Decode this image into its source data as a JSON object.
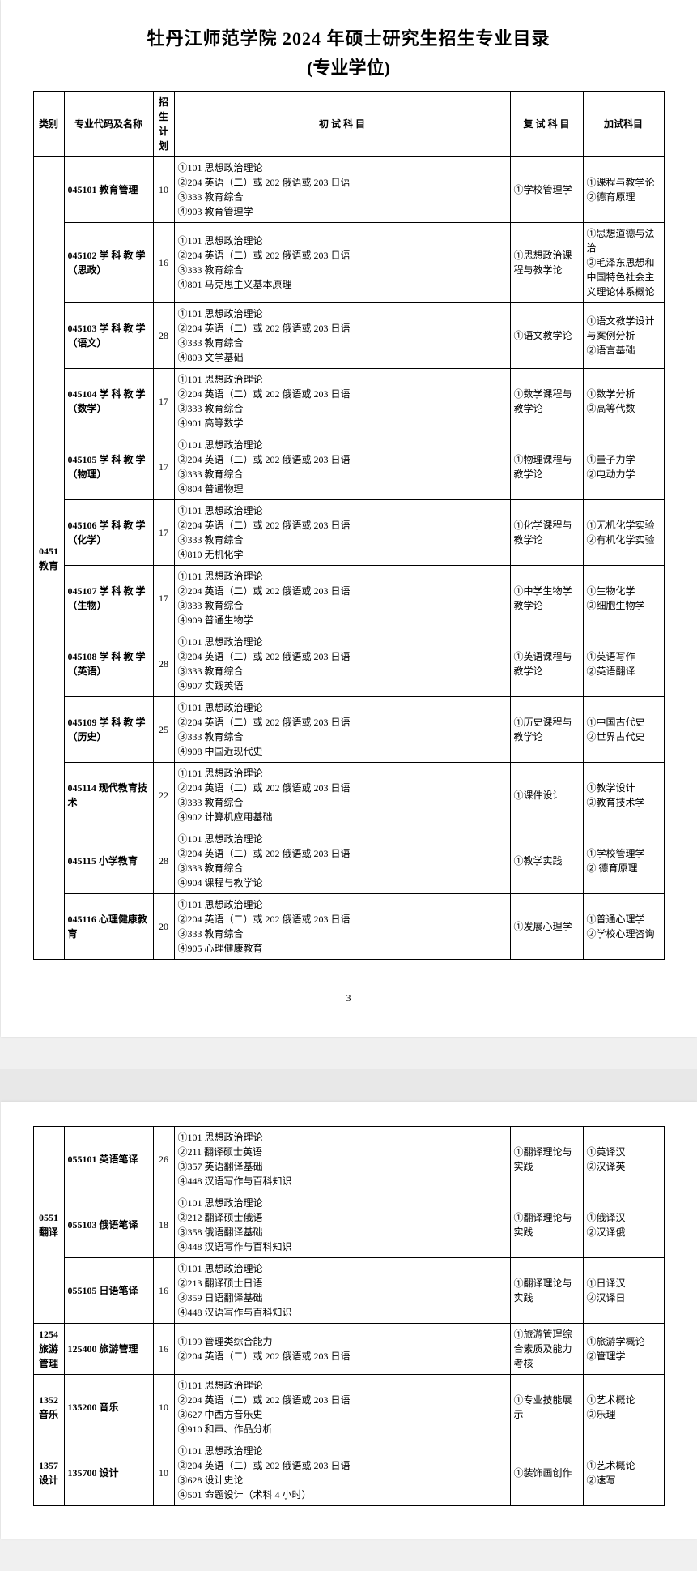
{
  "title_line1": "牡丹江师范学院 2024 年硕士研究生招生专业目录",
  "title_line2": "(专业学位)",
  "headers": {
    "category": "类别",
    "major": "专业代码及名称",
    "plan": "招生计划",
    "initial": "初 试 科 目",
    "reexam": "复 试 科 目",
    "additional": "加试科目"
  },
  "page_number": "3",
  "categories": [
    {
      "cat_code": "0451",
      "cat_name": "教育",
      "rows": [
        {
          "major": "045101 教育管理",
          "plan": "10",
          "init": [
            "①101 思想政治理论",
            "②204 英语（二）或 202 俄语或 203 日语",
            "③333 教育综合",
            "④903 教育管理学"
          ],
          "re": [
            "①学校管理学"
          ],
          "add": [
            "①课程与教学论",
            "②德育原理"
          ]
        },
        {
          "major": "045102 学 科 教 学（思政）",
          "plan": "16",
          "init": [
            "①101 思想政治理论",
            "②204 英语（二）或 202 俄语或 203 日语",
            "③333 教育综合",
            "④801 马克思主义基本原理"
          ],
          "re": [
            "①思想政治课程与教学论"
          ],
          "add": [
            "①思想道德与法治",
            "②毛泽东思想和中国特色社会主义理论体系概论"
          ]
        },
        {
          "major": "045103 学 科 教 学（语文）",
          "plan": "28",
          "init": [
            "①101 思想政治理论",
            "②204 英语（二）或 202 俄语或 203 日语",
            "③333 教育综合",
            "④803 文学基础"
          ],
          "re": [
            "①语文教学论"
          ],
          "add": [
            "①语文教学设计与案例分析",
            "②语言基础"
          ]
        },
        {
          "major": "045104 学 科 教 学（数学）",
          "plan": "17",
          "init": [
            "①101 思想政治理论",
            "②204 英语（二）或 202 俄语或 203 日语",
            "③333 教育综合",
            "④901 高等数学"
          ],
          "re": [
            "①数学课程与教学论"
          ],
          "add": [
            "①数学分析",
            "②高等代数"
          ]
        },
        {
          "major": "045105 学 科 教 学（物理）",
          "plan": "17",
          "init": [
            "①101 思想政治理论",
            "②204 英语（二）或 202 俄语或 203 日语",
            "③333 教育综合",
            "④804 普通物理"
          ],
          "re": [
            "①物理课程与教学论"
          ],
          "add": [
            "①量子力学",
            "②电动力学"
          ]
        },
        {
          "major": "045106 学 科 教 学（化学）",
          "plan": "17",
          "init": [
            "①101 思想政治理论",
            "②204 英语（二）或 202 俄语或 203 日语",
            "③333 教育综合",
            "④810 无机化学"
          ],
          "re": [
            "①化学课程与教学论"
          ],
          "add": [
            "①无机化学实验",
            "②有机化学实验"
          ]
        },
        {
          "major": "045107 学 科 教 学（生物）",
          "plan": "17",
          "init": [
            "①101 思想政治理论",
            "②204 英语（二）或 202 俄语或 203 日语",
            "③333 教育综合",
            "④909 普通生物学"
          ],
          "re": [
            "①中学生物学教学论"
          ],
          "add": [
            "①生物化学",
            "②细胞生物学"
          ]
        },
        {
          "major": "045108 学 科 教 学（英语）",
          "plan": "28",
          "init": [
            "①101 思想政治理论",
            "②204 英语（二）或 202 俄语或 203 日语",
            "③333 教育综合",
            "④907 实践英语"
          ],
          "re": [
            "①英语课程与教学论"
          ],
          "add": [
            "①英语写作",
            "②英语翻译"
          ]
        },
        {
          "major": "045109 学 科 教 学（历史）",
          "plan": "25",
          "init": [
            "①101 思想政治理论",
            "②204 英语（二）或 202 俄语或 203 日语",
            "③333 教育综合",
            "④908 中国近现代史"
          ],
          "re": [
            "①历史课程与教学论"
          ],
          "add": [
            "①中国古代史",
            "②世界古代史"
          ]
        },
        {
          "major": "045114 现代教育技术",
          "plan": "22",
          "init": [
            "①101 思想政治理论",
            "②204 英语（二）或 202 俄语或 203 日语",
            "③333 教育综合",
            "④902 计算机应用基础"
          ],
          "re": [
            "①课件设计"
          ],
          "add": [
            "①教学设计",
            "②教育技术学"
          ]
        },
        {
          "major": "045115 小学教育",
          "plan": "28",
          "init": [
            "①101 思想政治理论",
            "②204 英语（二）或 202 俄语或 203 日语",
            "③333 教育综合",
            "④904 课程与教学论"
          ],
          "re": [
            "①教学实践"
          ],
          "add": [
            "①学校管理学",
            "② 德育原理"
          ]
        },
        {
          "major": "045116 心理健康教育",
          "plan": "20",
          "init": [
            "①101 思想政治理论",
            "②204 英语（二）或 202 俄语或 203 日语",
            "③333 教育综合",
            "④905 心理健康教育"
          ],
          "re": [
            "①发展心理学"
          ],
          "add": [
            "①普通心理学",
            "②学校心理咨询"
          ]
        }
      ]
    },
    {
      "cat_code": "0551",
      "cat_name": "翻译",
      "rows": [
        {
          "major": "055101 英语笔译",
          "plan": "26",
          "init": [
            "①101 思想政治理论",
            "②211 翻译硕士英语",
            "③357 英语翻译基础",
            "④448 汉语写作与百科知识"
          ],
          "re": [
            "①翻译理论与实践"
          ],
          "add": [
            "①英译汉",
            "②汉译英"
          ]
        },
        {
          "major": "055103 俄语笔译",
          "plan": "18",
          "init": [
            "①101 思想政治理论",
            "②212 翻译硕士俄语",
            "③358 俄语翻译基础",
            "④448 汉语写作与百科知识"
          ],
          "re": [
            "①翻译理论与实践"
          ],
          "add": [
            "①俄译汉",
            "②汉译俄"
          ]
        },
        {
          "major": "055105 日语笔译",
          "plan": "16",
          "init": [
            "①101 思想政治理论",
            "②213 翻译硕士日语",
            "③359 日语翻译基础",
            "④448 汉语写作与百科知识"
          ],
          "re": [
            "①翻译理论与实践"
          ],
          "add": [
            "①日译汉",
            "②汉译日"
          ]
        }
      ]
    },
    {
      "cat_code": "1254",
      "cat_name": "旅游管理",
      "rows": [
        {
          "major": "125400 旅游管理",
          "plan": "16",
          "init": [
            "①199 管理类综合能力",
            "②204 英语（二）或 202 俄语或 203 日语"
          ],
          "re": [
            "①旅游管理综合素质及能力考核"
          ],
          "add": [
            "①旅游学概论",
            "②管理学"
          ]
        }
      ]
    },
    {
      "cat_code": "1352",
      "cat_name": "音乐",
      "rows": [
        {
          "major": "135200 音乐",
          "plan": "10",
          "init": [
            "①101 思想政治理论",
            "②204 英语（二）或 202 俄语或 203 日语",
            "③627 中西方音乐史",
            "④910 和声、作品分析"
          ],
          "re": [
            "①专业技能展示"
          ],
          "add": [
            "①艺术概论",
            "②乐理"
          ]
        }
      ]
    },
    {
      "cat_code": "1357",
      "cat_name": "设计",
      "rows": [
        {
          "major": "135700 设计",
          "plan": "10",
          "init": [
            "①101 思想政治理论",
            "②204 英语（二）或 202 俄语或 203 日语",
            "③628 设计史论",
            "④501 命题设计（术科 4 小时）"
          ],
          "re": [
            "①装饰画创作"
          ],
          "add": [
            "①艺术概论",
            "②速写"
          ]
        }
      ]
    }
  ]
}
